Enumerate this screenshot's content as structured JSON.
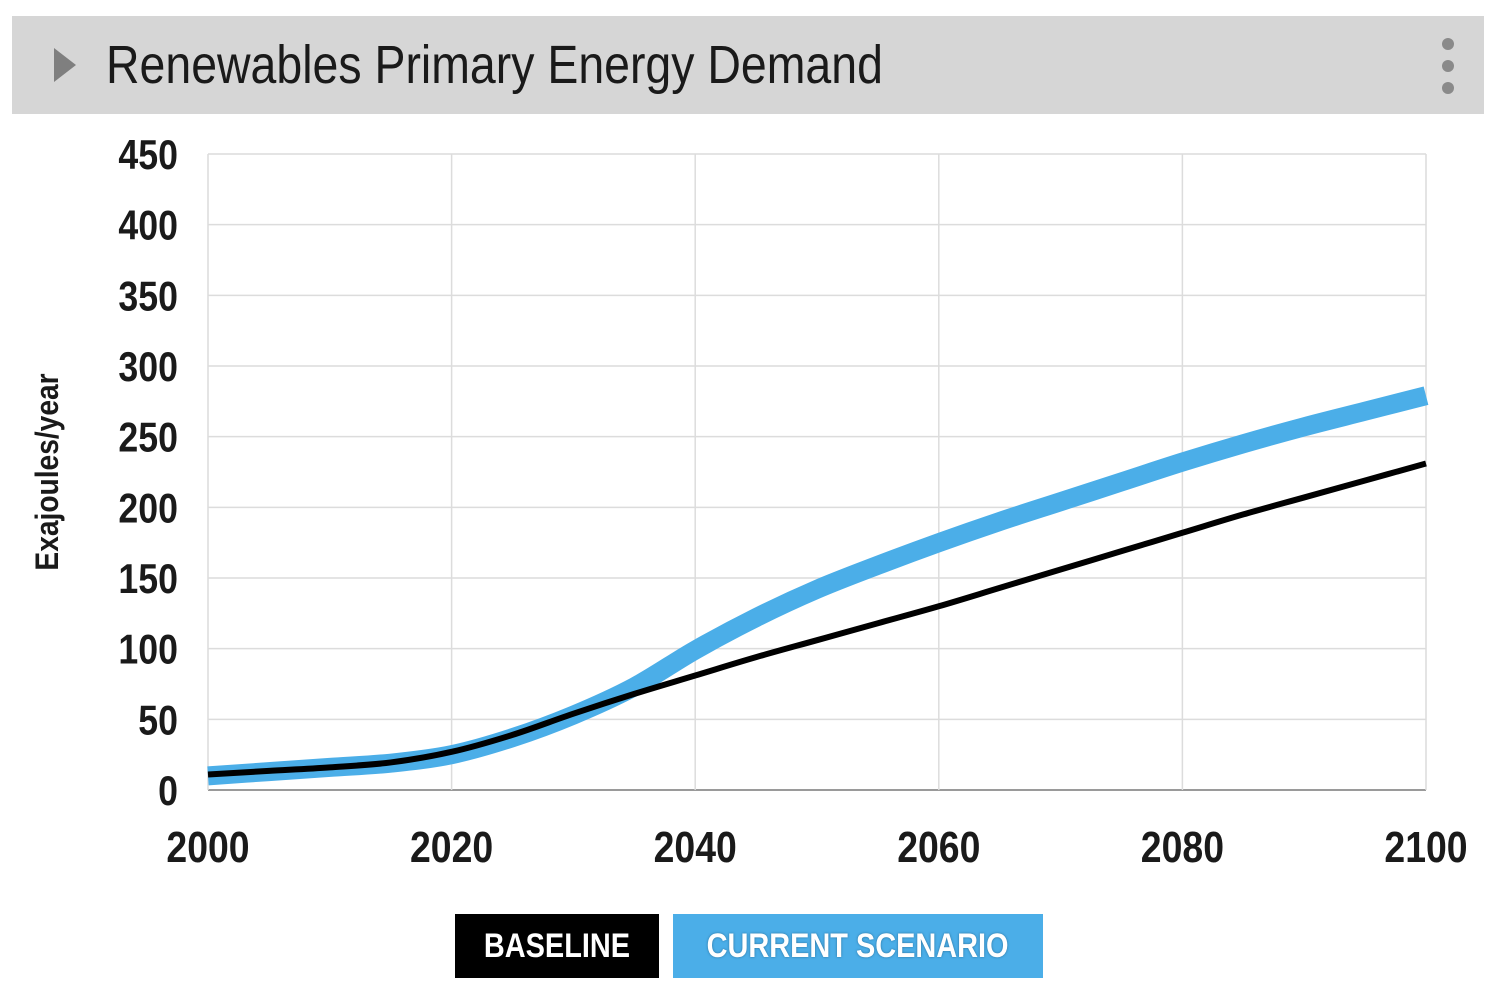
{
  "header": {
    "title": "Renewables Primary Energy Demand",
    "expand_icon": "chevron-right-icon",
    "menu_icon": "kebab-menu-icon"
  },
  "chart_data": {
    "type": "line",
    "title": "Renewables Primary Energy Demand",
    "xlabel": "",
    "ylabel": "Exajoules/year",
    "xlim": [
      2000,
      2100
    ],
    "ylim": [
      0,
      450
    ],
    "x_ticks": [
      2000,
      2020,
      2040,
      2060,
      2080,
      2100
    ],
    "y_ticks": [
      0,
      50,
      100,
      150,
      200,
      250,
      300,
      350,
      400,
      450
    ],
    "grid": true,
    "legend_placement": "bottom-center",
    "series": [
      {
        "name": "BASELINE",
        "color": "#000000",
        "x": [
          2000,
          2005,
          2010,
          2015,
          2020,
          2025,
          2030,
          2035,
          2040,
          2045,
          2050,
          2055,
          2060,
          2065,
          2070,
          2075,
          2080,
          2085,
          2090,
          2095,
          2100
        ],
        "values": [
          11,
          13.5,
          16,
          19.5,
          27,
          39,
          54,
          68,
          81,
          94,
          106,
          118,
          130,
          143,
          156,
          169,
          182,
          195,
          207,
          219,
          231
        ]
      },
      {
        "name": "CURRENT SCENARIO",
        "color": "#4baee8",
        "x": [
          2000,
          2005,
          2010,
          2015,
          2020,
          2025,
          2030,
          2035,
          2040,
          2045,
          2050,
          2055,
          2060,
          2065,
          2070,
          2075,
          2080,
          2085,
          2090,
          2095,
          2100
        ],
        "values": [
          10,
          13,
          16,
          19,
          25,
          37,
          53,
          73,
          99,
          122,
          142,
          159,
          175,
          190,
          204,
          218,
          232,
          245,
          257,
          268,
          279
        ]
      }
    ]
  },
  "legend": {
    "baseline_label": "BASELINE",
    "current_label": "CURRENT SCENARIO"
  }
}
